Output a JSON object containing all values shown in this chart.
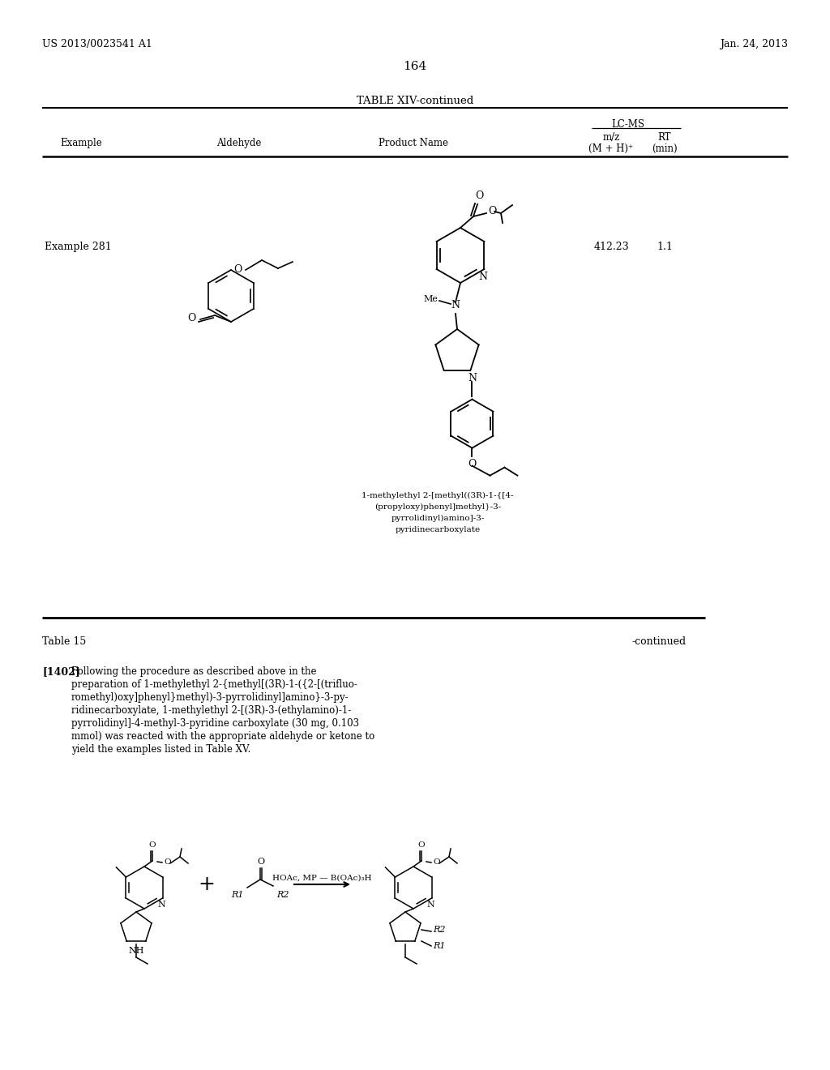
{
  "page_number": "164",
  "patent_number": "US 2013/0023541 A1",
  "patent_date": "Jan. 24, 2013",
  "table_title": "TABLE XIV-continued",
  "col_example": "Example",
  "col_aldehyde": "Aldehyde",
  "col_product": "Product Name",
  "col_lcms": "LC-MS",
  "col_mz": "m/z",
  "col_mz2": "(M + H)⁺",
  "col_rt": "RT",
  "col_rt2": "(min)",
  "example_label": "Example 281",
  "mz_value": "412.23",
  "rt_value": "1.1",
  "product_name_lines": [
    "1-methylethyl 2-[methyl((3R)-1-{[4-",
    "(propyloxy)phenyl]methyl}-3-",
    "pyrrolidinyl)amino]-3-",
    "pyridinecarboxylate"
  ],
  "table15_label": "Table 15",
  "continued_label": "-continued",
  "para_label": "[1402]",
  "para_lines": [
    "Following the procedure as described above in the",
    "preparation of 1-methylethyl 2-{methyl[(3R)-1-({2-[(trifluo-",
    "romethyl)oxy]phenyl}methyl)-3-pyrrolidinyl]amino}-3-py-",
    "ridinecarboxylate, 1-methylethyl 2-[(3R)-3-(ethylamino)-1-",
    "pyrrolidinyl]-4-methyl-3-pyridine carboxylate (30 mg, 0.103",
    "mmol) was reacted with the appropriate aldehyde or ketone to",
    "yield the examples listed in Table XV."
  ],
  "reagent_text": "HOAc, MP — B(OAc)₃H",
  "background_color": "#ffffff"
}
